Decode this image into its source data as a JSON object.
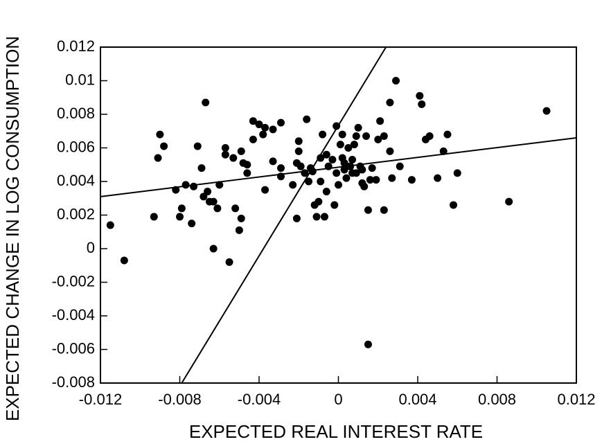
{
  "chart_data": {
    "type": "scatter",
    "xlabel": "EXPECTED REAL INTEREST RATE",
    "ylabel": "EXPECTED CHANGE IN LOG CONSUMPTION",
    "xlim": [
      -0.012,
      0.012
    ],
    "ylim": [
      -0.008,
      0.012
    ],
    "xticks": [
      -0.012,
      -0.008,
      -0.004,
      0,
      0.004,
      0.008,
      0.012
    ],
    "yticks": [
      0.012,
      0.01,
      0.008,
      0.006,
      0.004,
      0.002,
      0,
      -0.002,
      -0.004,
      -0.006,
      -0.008
    ],
    "color": "#000000",
    "x": [
      -0.0115,
      -0.0108,
      -0.0093,
      -0.0091,
      -0.009,
      -0.0088,
      -0.0082,
      -0.008,
      -0.0079,
      -0.0077,
      -0.0074,
      -0.0073,
      -0.0071,
      -0.0069,
      -0.0068,
      -0.0067,
      -0.0066,
      -0.0065,
      -0.0063,
      -0.0063,
      -0.0061,
      -0.006,
      -0.0057,
      -0.0057,
      -0.0055,
      -0.0053,
      -0.0052,
      -0.005,
      -0.0049,
      -0.0049,
      -0.0048,
      -0.0046,
      -0.0046,
      -0.0043,
      -0.0043,
      -0.004,
      -0.0038,
      -0.0037,
      -0.0037,
      -0.0033,
      -0.0033,
      -0.0029,
      -0.0029,
      -0.0029,
      -0.0023,
      -0.0021,
      -0.0021,
      -0.002,
      -0.002,
      -0.0019,
      -0.0017,
      -0.0016,
      -0.0015,
      -0.0014,
      -0.0013,
      -0.0012,
      -0.0011,
      -0.001,
      -0.0009,
      -0.0009,
      -0.0008,
      -0.0007,
      -0.0006,
      -0.0006,
      -0.0005,
      -0.0003,
      -0.0002,
      -0.0001,
      -0.0001,
      0,
      0.0001,
      0.0002,
      0.0002,
      0.0003,
      0.0003,
      0.0004,
      0.0005,
      0.0006,
      0.0007,
      0.0007,
      0.0008,
      0.0009,
      0.0009,
      0.001,
      0.0011,
      0.0012,
      0.0012,
      0.0013,
      0.0014,
      0.0015,
      0.0015,
      0.0016,
      0.0017,
      0.0019,
      0.002,
      0.0021,
      0.0023,
      0.0023,
      0.0026,
      0.0026,
      0.0027,
      0.0029,
      0.0031,
      0.0037,
      0.0041,
      0.0042,
      0.0044,
      0.0046,
      0.005,
      0.0053,
      0.0055,
      0.0058,
      0.006,
      0.0086,
      0.0105
    ],
    "values": [
      0.0014,
      -0.0007,
      0.0019,
      0.0054,
      0.0068,
      0.0061,
      0.0035,
      0.0019,
      0.0024,
      0.0038,
      0.0015,
      0.0037,
      0.0061,
      0.0048,
      0.0031,
      0.0087,
      0.0034,
      0.0028,
      0.0028,
      0,
      0.0024,
      0.0038,
      0.0056,
      0.006,
      -0.0008,
      0.0054,
      0.0024,
      0.0011,
      0.0018,
      0.0058,
      0.0051,
      0.005,
      0.0045,
      0.0065,
      0.0076,
      0.0074,
      0.0068,
      0.0072,
      0.0035,
      0.0071,
      0.0052,
      0.0048,
      0.0075,
      0.0043,
      0.0038,
      0.0051,
      0.0018,
      0.0064,
      0.0058,
      0.0049,
      0.0045,
      0.0077,
      0.004,
      0.0048,
      0.0046,
      0.0026,
      0.0019,
      0.0028,
      0.0054,
      0.004,
      0.0068,
      0.0019,
      0.0034,
      0.0056,
      0.0049,
      0.0053,
      0.0026,
      0.0073,
      0.0045,
      0.0038,
      0.0062,
      0.0068,
      0.0054,
      0.0047,
      0.0051,
      0.0042,
      0.006,
      0.0049,
      0.0053,
      0.0045,
      0.0062,
      0.0067,
      0.0045,
      0.0072,
      0.0049,
      0.0039,
      0.0047,
      0.0037,
      0.0067,
      -0.0057,
      0.0023,
      0.0041,
      0.0048,
      0.0041,
      0.0065,
      0.0076,
      0.0023,
      0.0067,
      0.0058,
      0.0087,
      0.0042,
      0.01,
      0.0049,
      0.0041,
      0.0091,
      0.0086,
      0.0065,
      0.0067,
      0.0042,
      0.0058,
      0.0068,
      0.0026,
      0.0045,
      0.0028,
      0.0082
    ],
    "lines": [
      {
        "x": [
          -0.0079,
          0.0024
        ],
        "y": [
          -0.008,
          0.012
        ]
      },
      {
        "x": [
          -0.012,
          0.012
        ],
        "y": [
          0.0031,
          0.0066
        ]
      }
    ]
  }
}
